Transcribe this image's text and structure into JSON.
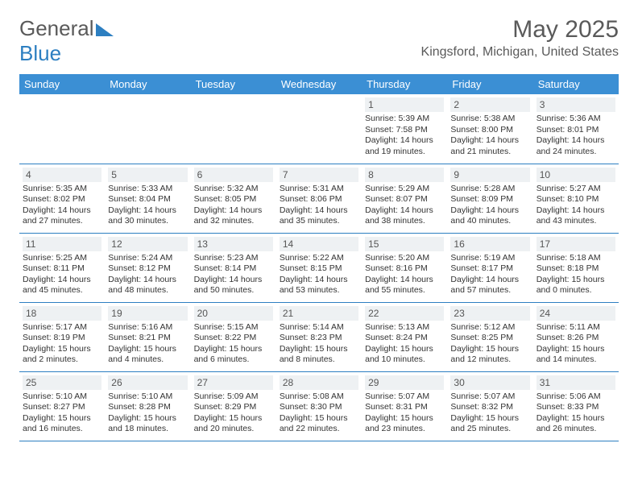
{
  "logo": {
    "text_a": "General",
    "text_b": "Blue"
  },
  "title": "May 2025",
  "location": "Kingsford, Michigan, United States",
  "colors": {
    "header_bg": "#3b8fd4",
    "border": "#2d7fc1",
    "daynum_bg": "#eef1f3",
    "page_bg": "#ffffff",
    "text": "#5a5a5a"
  },
  "weekdays": [
    "Sunday",
    "Monday",
    "Tuesday",
    "Wednesday",
    "Thursday",
    "Friday",
    "Saturday"
  ],
  "weeks": [
    [
      null,
      null,
      null,
      null,
      {
        "n": "1",
        "sr": "Sunrise: 5:39 AM",
        "ss": "Sunset: 7:58 PM",
        "dl": "Daylight: 14 hours and 19 minutes."
      },
      {
        "n": "2",
        "sr": "Sunrise: 5:38 AM",
        "ss": "Sunset: 8:00 PM",
        "dl": "Daylight: 14 hours and 21 minutes."
      },
      {
        "n": "3",
        "sr": "Sunrise: 5:36 AM",
        "ss": "Sunset: 8:01 PM",
        "dl": "Daylight: 14 hours and 24 minutes."
      }
    ],
    [
      {
        "n": "4",
        "sr": "Sunrise: 5:35 AM",
        "ss": "Sunset: 8:02 PM",
        "dl": "Daylight: 14 hours and 27 minutes."
      },
      {
        "n": "5",
        "sr": "Sunrise: 5:33 AM",
        "ss": "Sunset: 8:04 PM",
        "dl": "Daylight: 14 hours and 30 minutes."
      },
      {
        "n": "6",
        "sr": "Sunrise: 5:32 AM",
        "ss": "Sunset: 8:05 PM",
        "dl": "Daylight: 14 hours and 32 minutes."
      },
      {
        "n": "7",
        "sr": "Sunrise: 5:31 AM",
        "ss": "Sunset: 8:06 PM",
        "dl": "Daylight: 14 hours and 35 minutes."
      },
      {
        "n": "8",
        "sr": "Sunrise: 5:29 AM",
        "ss": "Sunset: 8:07 PM",
        "dl": "Daylight: 14 hours and 38 minutes."
      },
      {
        "n": "9",
        "sr": "Sunrise: 5:28 AM",
        "ss": "Sunset: 8:09 PM",
        "dl": "Daylight: 14 hours and 40 minutes."
      },
      {
        "n": "10",
        "sr": "Sunrise: 5:27 AM",
        "ss": "Sunset: 8:10 PM",
        "dl": "Daylight: 14 hours and 43 minutes."
      }
    ],
    [
      {
        "n": "11",
        "sr": "Sunrise: 5:25 AM",
        "ss": "Sunset: 8:11 PM",
        "dl": "Daylight: 14 hours and 45 minutes."
      },
      {
        "n": "12",
        "sr": "Sunrise: 5:24 AM",
        "ss": "Sunset: 8:12 PM",
        "dl": "Daylight: 14 hours and 48 minutes."
      },
      {
        "n": "13",
        "sr": "Sunrise: 5:23 AM",
        "ss": "Sunset: 8:14 PM",
        "dl": "Daylight: 14 hours and 50 minutes."
      },
      {
        "n": "14",
        "sr": "Sunrise: 5:22 AM",
        "ss": "Sunset: 8:15 PM",
        "dl": "Daylight: 14 hours and 53 minutes."
      },
      {
        "n": "15",
        "sr": "Sunrise: 5:20 AM",
        "ss": "Sunset: 8:16 PM",
        "dl": "Daylight: 14 hours and 55 minutes."
      },
      {
        "n": "16",
        "sr": "Sunrise: 5:19 AM",
        "ss": "Sunset: 8:17 PM",
        "dl": "Daylight: 14 hours and 57 minutes."
      },
      {
        "n": "17",
        "sr": "Sunrise: 5:18 AM",
        "ss": "Sunset: 8:18 PM",
        "dl": "Daylight: 15 hours and 0 minutes."
      }
    ],
    [
      {
        "n": "18",
        "sr": "Sunrise: 5:17 AM",
        "ss": "Sunset: 8:19 PM",
        "dl": "Daylight: 15 hours and 2 minutes."
      },
      {
        "n": "19",
        "sr": "Sunrise: 5:16 AM",
        "ss": "Sunset: 8:21 PM",
        "dl": "Daylight: 15 hours and 4 minutes."
      },
      {
        "n": "20",
        "sr": "Sunrise: 5:15 AM",
        "ss": "Sunset: 8:22 PM",
        "dl": "Daylight: 15 hours and 6 minutes."
      },
      {
        "n": "21",
        "sr": "Sunrise: 5:14 AM",
        "ss": "Sunset: 8:23 PM",
        "dl": "Daylight: 15 hours and 8 minutes."
      },
      {
        "n": "22",
        "sr": "Sunrise: 5:13 AM",
        "ss": "Sunset: 8:24 PM",
        "dl": "Daylight: 15 hours and 10 minutes."
      },
      {
        "n": "23",
        "sr": "Sunrise: 5:12 AM",
        "ss": "Sunset: 8:25 PM",
        "dl": "Daylight: 15 hours and 12 minutes."
      },
      {
        "n": "24",
        "sr": "Sunrise: 5:11 AM",
        "ss": "Sunset: 8:26 PM",
        "dl": "Daylight: 15 hours and 14 minutes."
      }
    ],
    [
      {
        "n": "25",
        "sr": "Sunrise: 5:10 AM",
        "ss": "Sunset: 8:27 PM",
        "dl": "Daylight: 15 hours and 16 minutes."
      },
      {
        "n": "26",
        "sr": "Sunrise: 5:10 AM",
        "ss": "Sunset: 8:28 PM",
        "dl": "Daylight: 15 hours and 18 minutes."
      },
      {
        "n": "27",
        "sr": "Sunrise: 5:09 AM",
        "ss": "Sunset: 8:29 PM",
        "dl": "Daylight: 15 hours and 20 minutes."
      },
      {
        "n": "28",
        "sr": "Sunrise: 5:08 AM",
        "ss": "Sunset: 8:30 PM",
        "dl": "Daylight: 15 hours and 22 minutes."
      },
      {
        "n": "29",
        "sr": "Sunrise: 5:07 AM",
        "ss": "Sunset: 8:31 PM",
        "dl": "Daylight: 15 hours and 23 minutes."
      },
      {
        "n": "30",
        "sr": "Sunrise: 5:07 AM",
        "ss": "Sunset: 8:32 PM",
        "dl": "Daylight: 15 hours and 25 minutes."
      },
      {
        "n": "31",
        "sr": "Sunrise: 5:06 AM",
        "ss": "Sunset: 8:33 PM",
        "dl": "Daylight: 15 hours and 26 minutes."
      }
    ]
  ]
}
